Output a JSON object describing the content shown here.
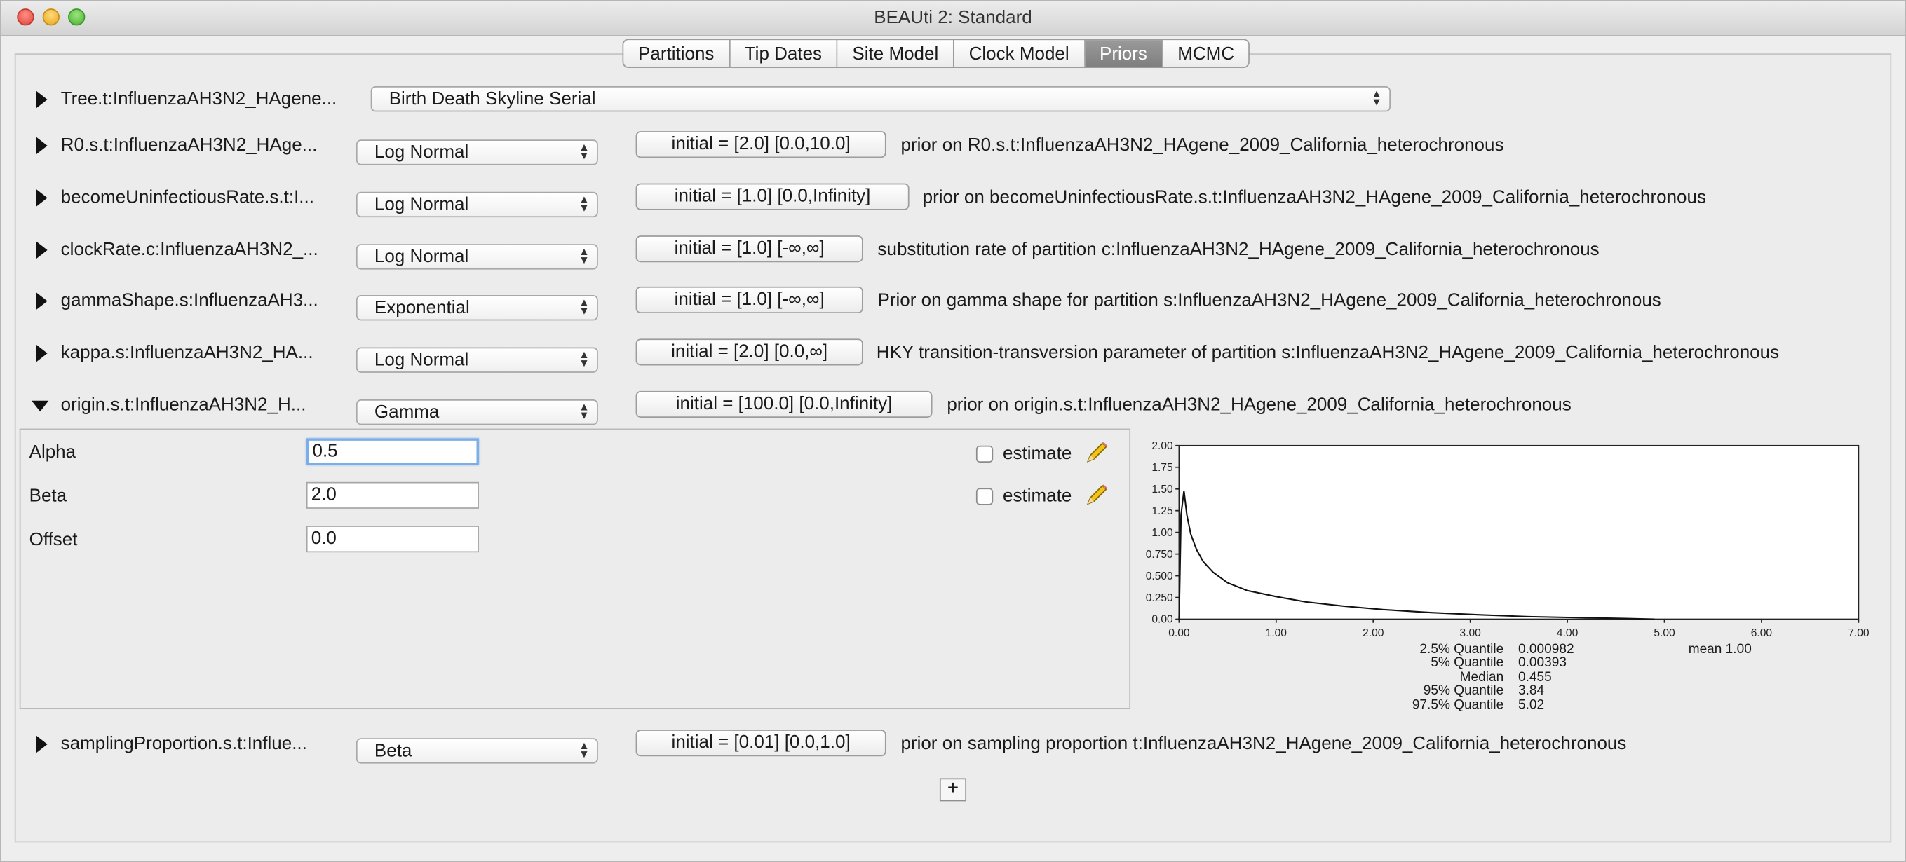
{
  "window": {
    "title": "BEAUti 2: Standard"
  },
  "tabs": [
    {
      "label": "Partitions"
    },
    {
      "label": "Tip Dates"
    },
    {
      "label": "Site Model"
    },
    {
      "label": "Clock Model"
    },
    {
      "label": "Priors",
      "active": true
    },
    {
      "label": "MCMC"
    }
  ],
  "tree_row": {
    "label": "Tree.t:InfluenzaAH3N2_HAgene...",
    "value": "Birth Death Skyline Serial"
  },
  "rows": [
    {
      "label": "R0.s.t:InfluenzaAH3N2_HAge...",
      "dist": "Log Normal",
      "initial": "initial = [2.0] [0.0,10.0]",
      "desc": "prior on R0.s.t:InfluenzaAH3N2_HAgene_2009_California_heterochronous"
    },
    {
      "label": "becomeUninfectiousRate.s.t:I...",
      "dist": "Log Normal",
      "initial": "initial = [1.0] [0.0,Infinity]",
      "desc": "prior on becomeUninfectiousRate.s.t:InfluenzaAH3N2_HAgene_2009_California_heterochronous"
    },
    {
      "label": "clockRate.c:InfluenzaAH3N2_...",
      "dist": "Log Normal",
      "initial": "initial = [1.0] [-∞,∞]",
      "desc": "substitution rate of partition c:InfluenzaAH3N2_HAgene_2009_California_heterochronous"
    },
    {
      "label": "gammaShape.s:InfluenzaAH3...",
      "dist": "Exponential",
      "initial": "initial = [1.0] [-∞,∞]",
      "desc": "Prior on gamma shape for partition s:InfluenzaAH3N2_HAgene_2009_California_heterochronous"
    },
    {
      "label": "kappa.s:InfluenzaAH3N2_HA...",
      "dist": "Log Normal",
      "initial": "initial = [2.0] [0.0,∞]",
      "desc": "HKY transition-transversion parameter of partition s:InfluenzaAH3N2_HAgene_2009_California_heterochronous"
    },
    {
      "label": "origin.s.t:InfluenzaAH3N2_H...",
      "dist": "Gamma",
      "initial": "initial = [100.0] [0.0,Infinity]",
      "desc": "prior on origin.s.t:InfluenzaAH3N2_HAgene_2009_California_heterochronous",
      "expanded": true
    }
  ],
  "sampling_row": {
    "label": "samplingProportion.s.t:Influe...",
    "dist": "Beta",
    "initial": "initial = [0.01] [0.0,1.0]",
    "desc": "prior on sampling proportion t:InfluenzaAH3N2_HAgene_2009_California_heterochronous"
  },
  "params": {
    "alpha": {
      "label": "Alpha",
      "value": "0.5"
    },
    "beta": {
      "label": "Beta",
      "value": "2.0"
    },
    "offset": {
      "label": "Offset",
      "value": "0.0"
    },
    "estimate_label": "estimate"
  },
  "plus_label": "+",
  "chart_data": {
    "type": "line",
    "x": [
      0.0,
      0.02,
      0.05,
      0.08,
      0.12,
      0.18,
      0.25,
      0.35,
      0.5,
      0.7,
      1.0,
      1.3,
      1.7,
      2.1,
      2.6,
      3.1,
      3.6,
      4.1,
      4.6,
      4.9
    ],
    "y": [
      0.0,
      1.2,
      1.48,
      1.2,
      0.98,
      0.8,
      0.66,
      0.54,
      0.42,
      0.33,
      0.26,
      0.2,
      0.15,
      0.11,
      0.075,
      0.05,
      0.03,
      0.018,
      0.008,
      0.0
    ],
    "xticks": [
      "0.00",
      "1.00",
      "2.00",
      "3.00",
      "4.00",
      "5.00",
      "6.00",
      "7.00"
    ],
    "yticks": [
      "0.00",
      "0.250",
      "0.500",
      "0.750",
      "1.00",
      "1.25",
      "1.50",
      "1.75",
      "2.00"
    ],
    "xlim": [
      0,
      7
    ],
    "ylim": [
      0,
      2
    ],
    "quantiles": [
      {
        "label": "2.5% Quantile",
        "value": "0.000982"
      },
      {
        "label": "5% Quantile",
        "value": "0.00393"
      },
      {
        "label": "Median",
        "value": "0.455"
      },
      {
        "label": "95% Quantile",
        "value": "3.84"
      },
      {
        "label": "97.5% Quantile",
        "value": "5.02"
      }
    ],
    "mean_label": "mean 1.00"
  }
}
